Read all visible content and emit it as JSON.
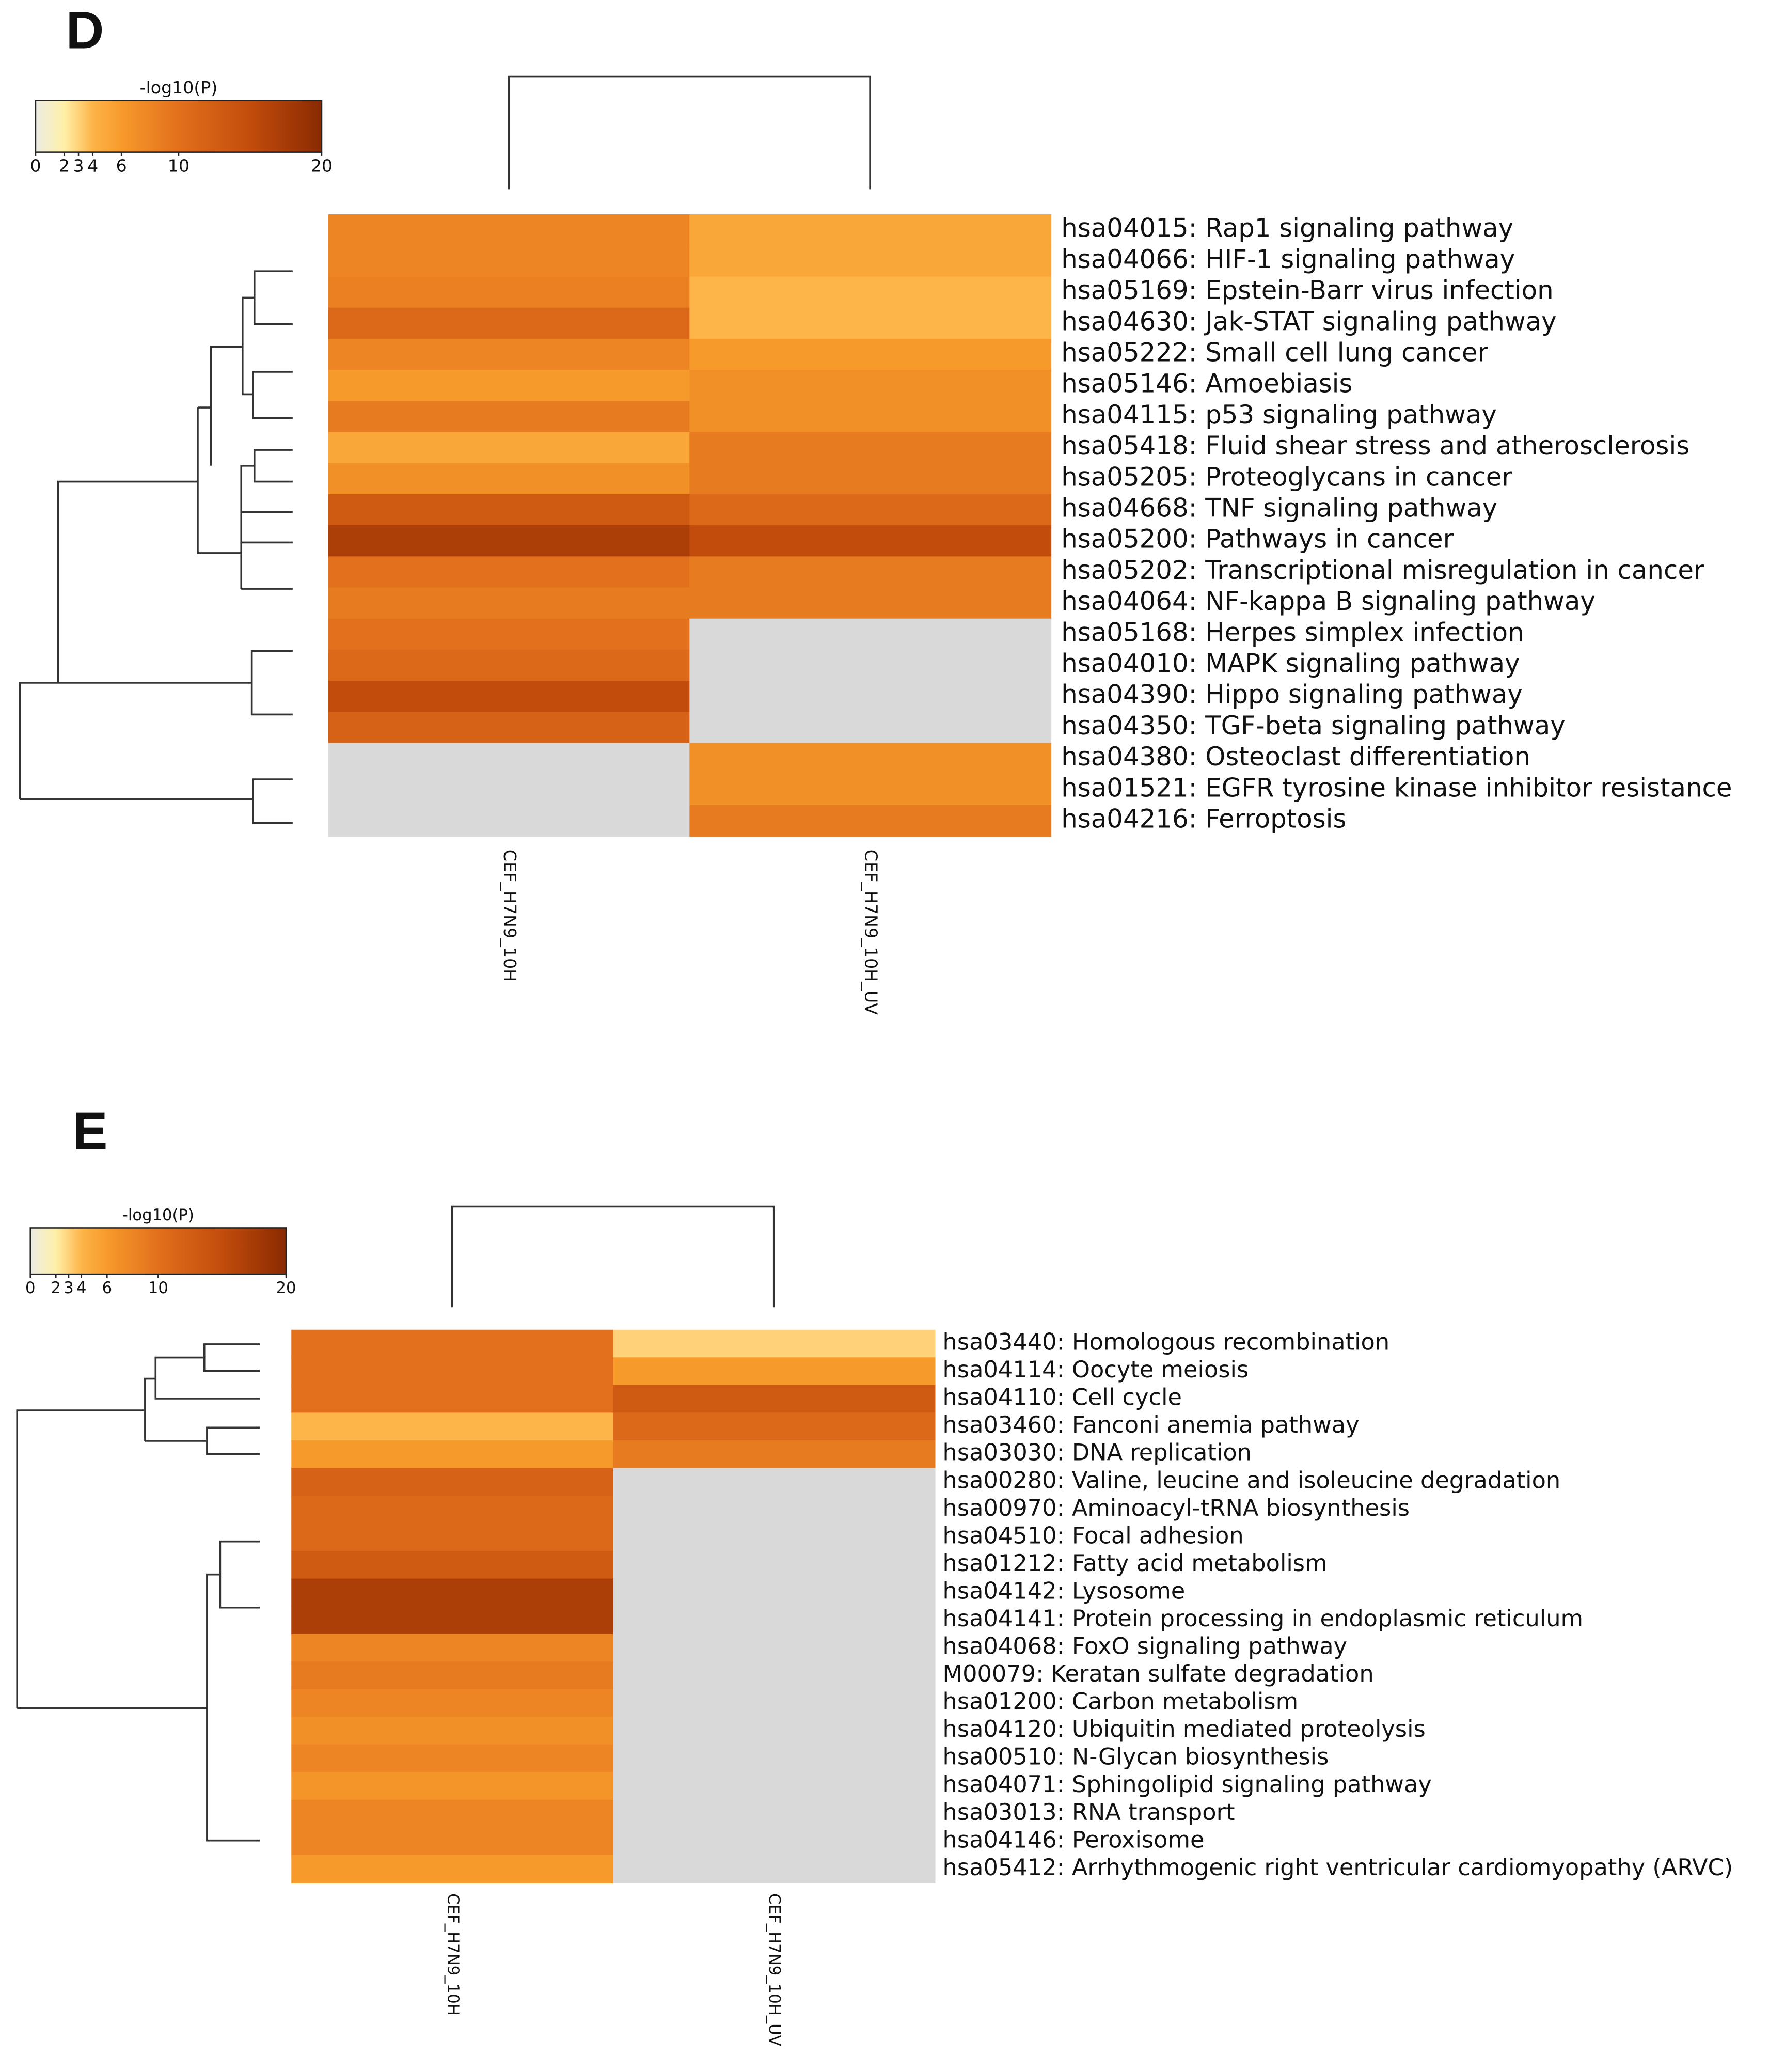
{
  "chart_data": [
    {
      "type": "heatmap",
      "panel": "D",
      "colorbar_title": "-log10(P)",
      "clim": [
        0,
        20
      ],
      "cticks": [
        0,
        2,
        3,
        4,
        6,
        10,
        20
      ],
      "colorscale": [
        [
          0,
          "#ecece4"
        ],
        [
          2,
          "#fff0a8"
        ],
        [
          3,
          "#ffd27a"
        ],
        [
          4,
          "#fdb448"
        ],
        [
          6,
          "#f79a2c"
        ],
        [
          10,
          "#e2701c"
        ],
        [
          15,
          "#c24c0c"
        ],
        [
          20,
          "#8a2a02"
        ]
      ],
      "na_color": "#d9d9d9",
      "columns": [
        "CEF_H7N9_10H",
        "CEF_H7N9_10H_UV"
      ],
      "rows": [
        "hsa04015: Rap1 signaling pathway",
        "hsa04066: HIF-1 signaling pathway",
        "hsa05169: Epstein-Barr virus infection",
        "hsa04630: Jak-STAT signaling pathway",
        "hsa05222: Small cell lung cancer",
        "hsa05146: Amoebiasis",
        "hsa04115: p53 signaling pathway",
        "hsa05418: Fluid shear stress and atherosclerosis",
        "hsa05205: Proteoglycans in cancer",
        "hsa04668: TNF signaling pathway",
        "hsa05200: Pathways in cancer",
        "hsa05202: Transcriptional misregulation in cancer",
        "hsa04064: NF-kappa B signaling pathway",
        "hsa05168: Herpes simplex infection",
        "hsa04010: MAPK signaling pathway",
        "hsa04390: Hippo signaling pathway",
        "hsa04350: TGF-beta signaling pathway",
        "hsa04380: Osteoclast differentiation",
        "hsa01521: EGFR tyrosine kinase inhibitor resistance",
        "hsa04216: Ferroptosis"
      ],
      "values": [
        [
          8,
          5
        ],
        [
          8,
          5
        ],
        [
          8.5,
          4
        ],
        [
          11,
          4
        ],
        [
          8,
          6
        ],
        [
          6,
          7
        ],
        [
          9,
          7
        ],
        [
          5,
          9
        ],
        [
          7,
          9
        ],
        [
          13,
          11
        ],
        [
          17,
          15
        ],
        [
          10,
          9
        ],
        [
          9,
          9
        ],
        [
          10,
          null
        ],
        [
          11,
          null
        ],
        [
          15,
          null
        ],
        [
          12,
          null
        ],
        [
          null,
          7
        ],
        [
          null,
          7
        ],
        [
          null,
          9
        ]
      ]
    },
    {
      "type": "heatmap",
      "panel": "E",
      "colorbar_title": "-log10(P)",
      "clim": [
        0,
        20
      ],
      "cticks": [
        0,
        2,
        3,
        4,
        6,
        10,
        20
      ],
      "colorscale": [
        [
          0,
          "#ecece4"
        ],
        [
          2,
          "#fff0a8"
        ],
        [
          3,
          "#ffd27a"
        ],
        [
          4,
          "#fdb448"
        ],
        [
          6,
          "#f79a2c"
        ],
        [
          10,
          "#e2701c"
        ],
        [
          15,
          "#c24c0c"
        ],
        [
          20,
          "#8a2a02"
        ]
      ],
      "na_color": "#d9d9d9",
      "columns": [
        "CEF_H7N9_10H",
        "CEF_H7N9_10H_UV"
      ],
      "rows": [
        "hsa03440: Homologous recombination",
        "hsa04114: Oocyte meiosis",
        "hsa04110: Cell cycle",
        "hsa03460: Fanconi anemia pathway",
        "hsa03030: DNA replication",
        "hsa00280: Valine, leucine and isoleucine degradation",
        "hsa00970: Aminoacyl-tRNA biosynthesis",
        "hsa04510: Focal adhesion",
        "hsa01212: Fatty acid metabolism",
        "hsa04142: Lysosome",
        "hsa04141: Protein processing in endoplasmic reticulum",
        "hsa04068: FoxO signaling pathway",
        "M00079: Keratan sulfate degradation",
        "hsa01200: Carbon metabolism",
        "hsa04120: Ubiquitin mediated proteolysis",
        "hsa00510: N-Glycan biosynthesis",
        "hsa04071: Sphingolipid signaling pathway",
        "hsa03013: RNA transport",
        "hsa04146: Peroxisome",
        "hsa05412: Arrhythmogenic right ventricular cardiomyopathy (ARVC)"
      ],
      "values": [
        [
          10,
          3
        ],
        [
          10,
          6
        ],
        [
          10,
          13
        ],
        [
          4,
          11
        ],
        [
          6,
          9
        ],
        [
          12,
          null
        ],
        [
          11,
          null
        ],
        [
          11,
          null
        ],
        [
          13,
          null
        ],
        [
          17,
          null
        ],
        [
          17,
          null
        ],
        [
          8,
          null
        ],
        [
          9,
          null
        ],
        [
          8,
          null
        ],
        [
          7,
          null
        ],
        [
          8,
          null
        ],
        [
          6.5,
          null
        ],
        [
          8,
          null
        ],
        [
          8,
          null
        ],
        [
          6,
          null
        ]
      ]
    }
  ]
}
